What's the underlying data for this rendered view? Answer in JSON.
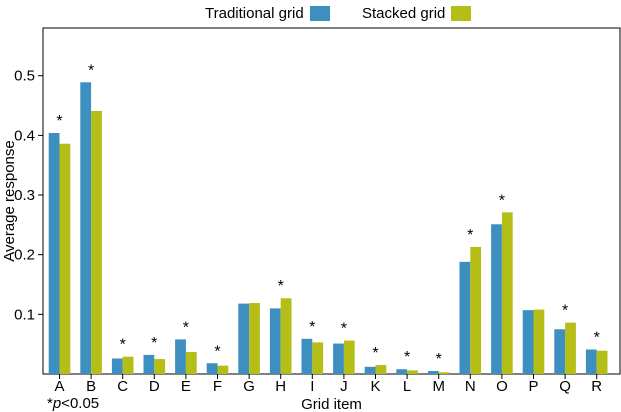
{
  "chart_data": {
    "type": "bar",
    "title": "",
    "xlabel": "Grid item",
    "ylabel": "Average response",
    "ylim": [
      0,
      0.58
    ],
    "yticks": [
      "0.1",
      "0.2",
      "0.3",
      "0.4",
      "0.5"
    ],
    "ytick_values": [
      0.1,
      0.2,
      0.3,
      0.4,
      0.5
    ],
    "categories": [
      "A",
      "B",
      "C",
      "D",
      "E",
      "F",
      "G",
      "H",
      "I",
      "J",
      "K",
      "L",
      "M",
      "N",
      "O",
      "P",
      "Q",
      "R"
    ],
    "series": [
      {
        "name": "Traditional grid",
        "color": "#3d8fbf",
        "values": [
          0.404,
          0.489,
          0.026,
          0.032,
          0.058,
          0.018,
          0.118,
          0.11,
          0.059,
          0.051,
          0.012,
          0.008,
          0.005,
          0.188,
          0.251,
          0.107,
          0.075,
          0.041
        ]
      },
      {
        "name": "Stacked grid",
        "color": "#b5be17",
        "values": [
          0.386,
          0.441,
          0.029,
          0.025,
          0.037,
          0.014,
          0.119,
          0.127,
          0.053,
          0.056,
          0.015,
          0.006,
          0.003,
          0.213,
          0.271,
          0.108,
          0.086,
          0.039
        ]
      }
    ],
    "significant": [
      true,
      true,
      true,
      true,
      true,
      true,
      false,
      true,
      true,
      true,
      true,
      true,
      true,
      true,
      true,
      false,
      true,
      true
    ],
    "significance_marker": "*",
    "legend_position": "top",
    "grid": false
  },
  "legend": {
    "items": [
      {
        "label": "Traditional grid",
        "color": "#3d8fbf"
      },
      {
        "label": "Stacked grid",
        "color": "#b5be17"
      }
    ]
  },
  "footnote": {
    "star": "*",
    "p": "p",
    "rest": "<0.05"
  }
}
